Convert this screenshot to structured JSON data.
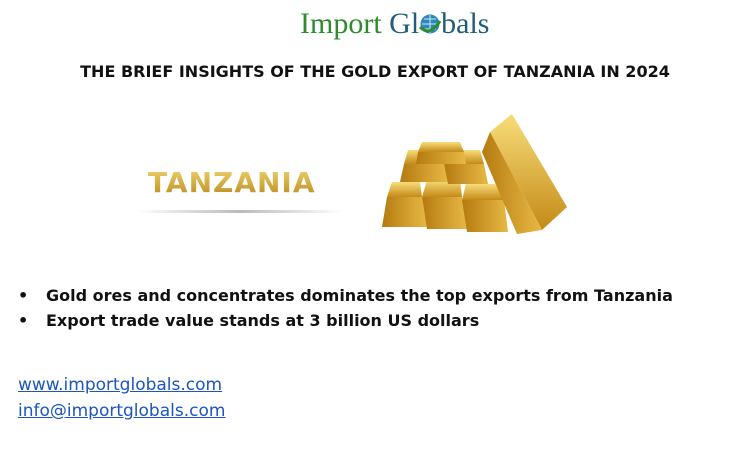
{
  "logo": {
    "part1": "Import",
    "part2": "Gl",
    "part3": "bals",
    "icon": "globe-icon",
    "colors": {
      "green": "#2e8b2e",
      "blue": "#1f5d7a"
    }
  },
  "title": "THE BRIEF INSIGHTS OF THE GOLD EXPORT OF TANZANIA IN 2024",
  "country_label": "TANZANIA",
  "image": "gold-bars",
  "bullets": [
    "Gold ores and concentrates dominates the top exports from Tanzania",
    "Export trade value stands at 3 billion US dollars"
  ],
  "bullet_symbol": "•",
  "links": {
    "website": "www.importglobals.com",
    "email": "info@importglobals.com"
  }
}
